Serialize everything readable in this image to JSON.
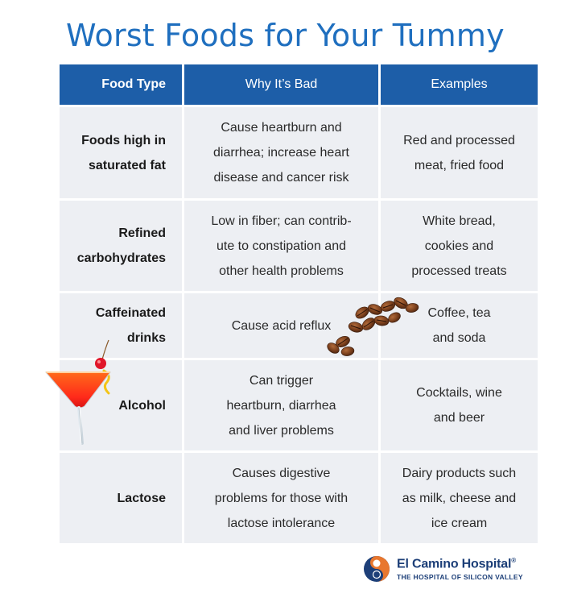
{
  "title": "Worst Foods for Your Tummy",
  "table": {
    "headers": [
      "Food Type",
      "Why It’s Bad",
      "Examples"
    ],
    "rows": [
      {
        "food": [
          "Foods high in",
          "saturated fat"
        ],
        "why": [
          "Cause heartburn and",
          "diarrhea; increase heart",
          "disease and cancer risk"
        ],
        "examples": [
          "Red and processed",
          "meat, fried food"
        ]
      },
      {
        "food": [
          "Refined",
          "carbohydrates"
        ],
        "why": [
          "Low in fiber; can contrib-",
          "ute to constipation and",
          "other health problems"
        ],
        "examples": [
          "White bread,",
          "cookies and",
          "processed treats"
        ]
      },
      {
        "food": [
          "Caffeinated",
          "drinks"
        ],
        "why": [
          "Cause acid reflux"
        ],
        "examples": [
          "Coffee, tea",
          "and soda"
        ]
      },
      {
        "food": [
          "Alcohol"
        ],
        "why": [
          "Can trigger",
          "heartburn, diarrhea",
          "and liver problems"
        ],
        "examples": [
          "Cocktails, wine",
          "and beer"
        ]
      },
      {
        "food": [
          "Lactose"
        ],
        "why": [
          "Causes digestive",
          "problems for those with",
          "lactose intolerance"
        ],
        "examples": [
          "Dairy products such",
          "as milk, cheese and",
          "ice cream"
        ]
      }
    ]
  },
  "images": {
    "beans": "coffee-beans-icon",
    "cocktail": "cocktail-glass-icon"
  },
  "logo": {
    "name": "El Camino Hospital",
    "registered": "®",
    "tagline": "THE HOSPITAL OF SILICON VALLEY",
    "icon": "el-camino-logo-icon"
  },
  "colors": {
    "title": "#1f6fbf",
    "header_bg": "#1d5ea8",
    "cell_bg": "#edeff3",
    "logo_blue": "#1d3f78",
    "logo_orange": "#e8772e"
  }
}
